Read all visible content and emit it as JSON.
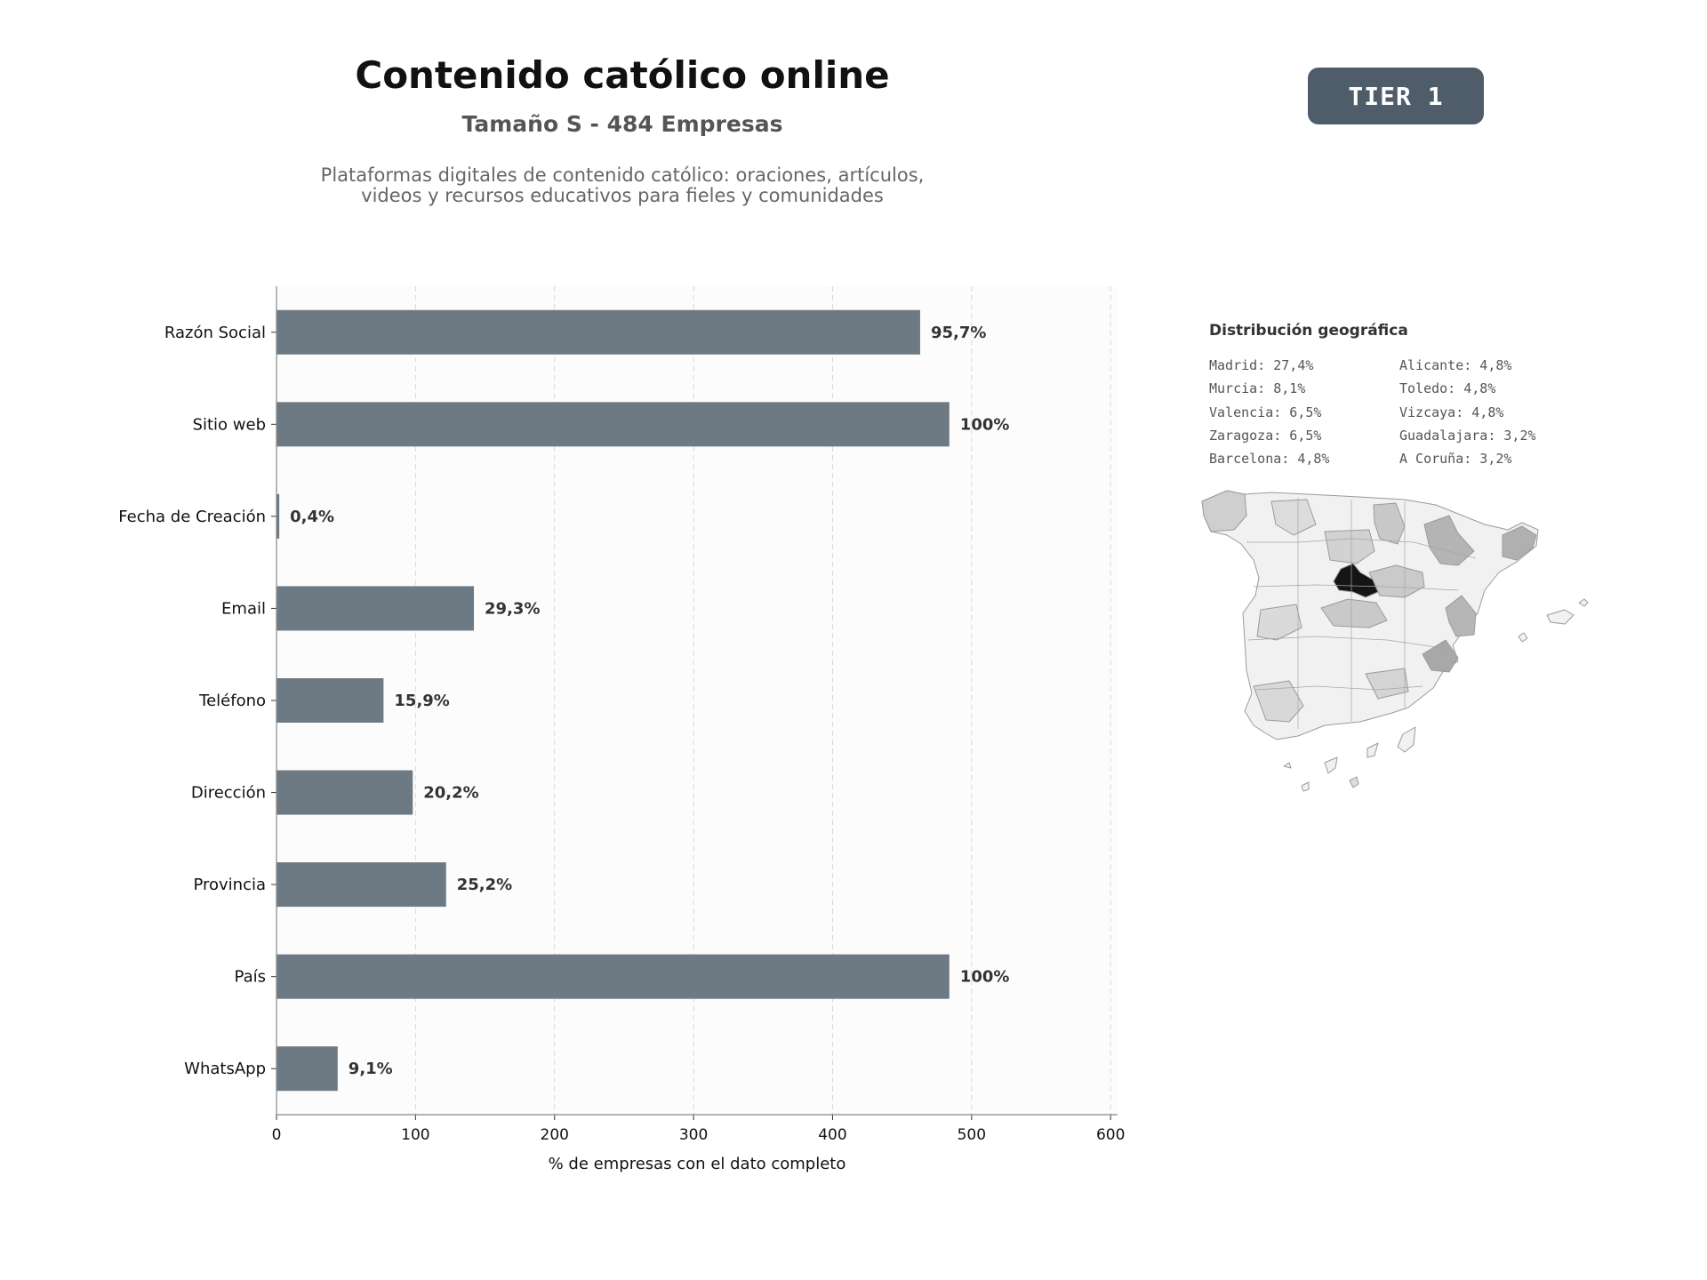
{
  "header": {
    "title": "Contenido católico online",
    "subtitle": "Tamaño S - 484 Empresas",
    "description_line1": "Plataformas digitales de contenido católico: oraciones, artículos,",
    "description_line2": "videos y recursos educativos para fieles y comunidades",
    "tier_badge": "TIER 1"
  },
  "colors": {
    "bar": "#6e7a83",
    "badge": "#4f5c69",
    "plot_background": "#fcfcfc",
    "map_highlight": "#151515"
  },
  "chart_data": {
    "type": "bar",
    "orientation": "horizontal",
    "categories": [
      "Razón Social",
      "Sitio web",
      "Fecha de Creación",
      "Email",
      "Teléfono",
      "Dirección",
      "Provincia",
      "País",
      "WhatsApp"
    ],
    "values": [
      463,
      484,
      2,
      142,
      77,
      98,
      122,
      484,
      44
    ],
    "data_labels": [
      "95,7%",
      "100%",
      "0,4%",
      "29,3%",
      "15,9%",
      "20,2%",
      "25,2%",
      "100%",
      "9,1%"
    ],
    "xlabel": "% de empresas con el dato completo",
    "ylabel": "",
    "xlim": [
      0,
      605
    ],
    "xticks": [
      0,
      100,
      200,
      300,
      400,
      500,
      600
    ],
    "grid": "vertical dashed"
  },
  "geo": {
    "title": "Distribución geográfica",
    "left_column": [
      "Madrid: 27,4%",
      "Murcia: 8,1%",
      "Valencia: 6,5%",
      "Zaragoza: 6,5%",
      "Barcelona: 4,8%"
    ],
    "right_column": [
      "Alicante: 4,8%",
      "Toledo: 4,8%",
      "Vizcaya: 4,8%",
      "Guadalajara: 3,2%",
      "A Coruña: 3,2%"
    ]
  }
}
